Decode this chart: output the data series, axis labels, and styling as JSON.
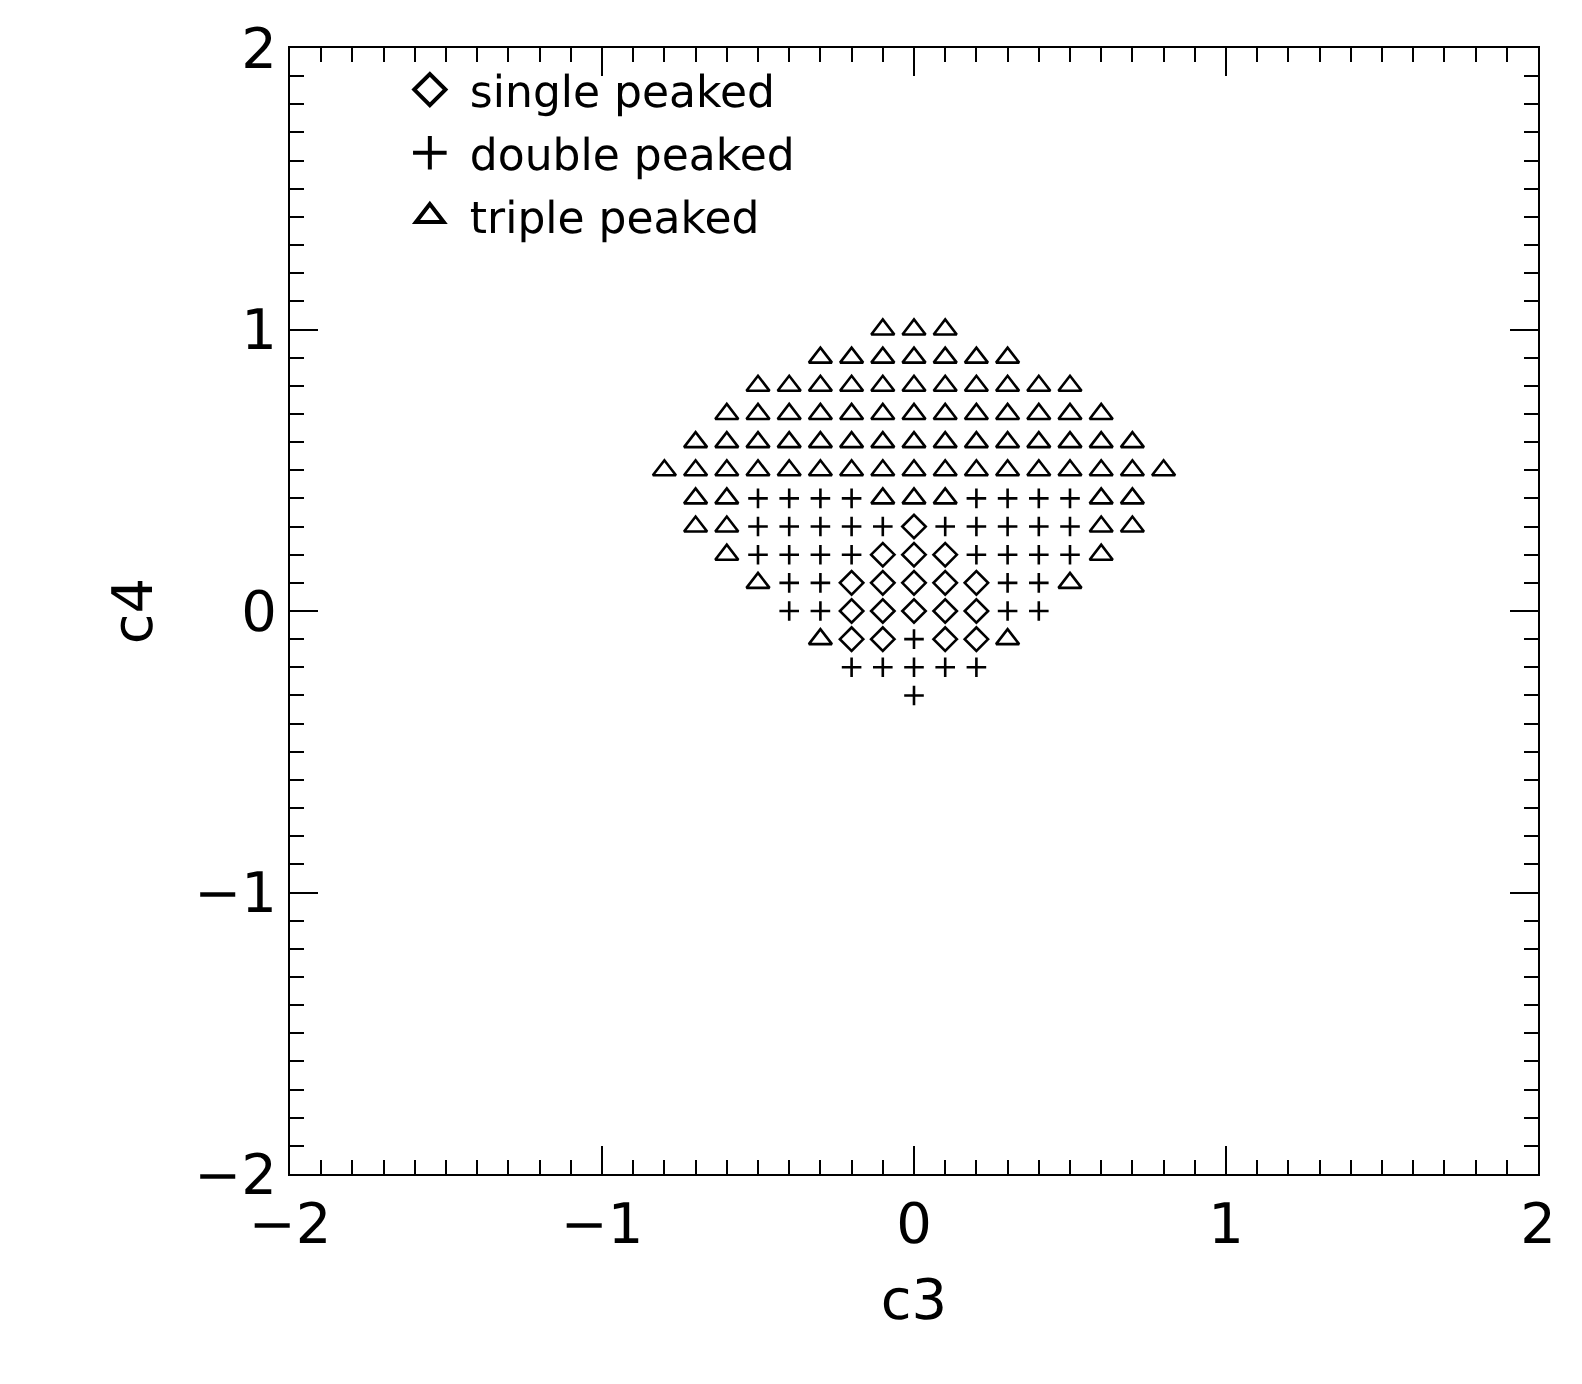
{
  "chart_data": {
    "type": "scatter",
    "xlabel": "c3",
    "ylabel": "c4",
    "xlim": [
      -2,
      2
    ],
    "ylim": [
      -2,
      2
    ],
    "xticks": [
      -2,
      -1,
      0,
      1,
      2
    ],
    "yticks": [
      -2,
      -1,
      0,
      1,
      2
    ],
    "grid": false,
    "legend": "top left",
    "series": [
      {
        "name": "single peaked",
        "color": "#000000",
        "marker": "diamond",
        "x": [
          0,
          -0.1,
          0,
          0.1,
          -0.2,
          -0.1,
          0,
          0.1,
          0.2,
          -0.2,
          -0.1,
          0,
          0.1,
          0.2,
          -0.2,
          -0.1,
          0.1,
          0.2
        ],
        "values": [
          0.3,
          0.2,
          0.2,
          0.2,
          0.1,
          0.1,
          0.1,
          0.1,
          0.1,
          0,
          0,
          0,
          0,
          0,
          -0.1,
          -0.1,
          -0.1,
          -0.1
        ]
      },
      {
        "name": "double peaked",
        "color": "#000000",
        "marker": "cross",
        "x": [
          -0.5,
          -0.4,
          -0.3,
          -0.2,
          0.2,
          0.3,
          0.4,
          0.5,
          -0.5,
          -0.4,
          -0.3,
          -0.2,
          -0.1,
          0.1,
          0.2,
          0.3,
          0.4,
          0.5,
          -0.5,
          -0.4,
          -0.3,
          -0.2,
          0.2,
          0.3,
          0.4,
          0.5,
          -0.4,
          -0.3,
          0.3,
          0.4,
          -0.4,
          -0.3,
          0.3,
          0.4,
          0,
          -0.2,
          -0.1,
          0,
          0.1,
          0.2,
          0
        ],
        "values": [
          0.4,
          0.4,
          0.4,
          0.4,
          0.4,
          0.4,
          0.4,
          0.4,
          0.3,
          0.3,
          0.3,
          0.3,
          0.3,
          0.3,
          0.3,
          0.3,
          0.3,
          0.3,
          0.2,
          0.2,
          0.2,
          0.2,
          0.2,
          0.2,
          0.2,
          0.2,
          0.1,
          0.1,
          0.1,
          0.1,
          0,
          0,
          0,
          0,
          -0.1,
          -0.2,
          -0.2,
          -0.2,
          -0.2,
          -0.2,
          -0.3
        ]
      },
      {
        "name": "triple peaked",
        "color": "#000000",
        "marker": "triangle",
        "x": [
          -0.1,
          0,
          0.1,
          -0.3,
          -0.2,
          -0.1,
          0,
          0.1,
          0.2,
          0.3,
          -0.5,
          -0.4,
          -0.3,
          -0.2,
          -0.1,
          0,
          0.1,
          0.2,
          0.3,
          0.4,
          0.5,
          -0.6,
          -0.5,
          -0.4,
          -0.3,
          -0.2,
          -0.1,
          0,
          0.1,
          0.2,
          0.3,
          0.4,
          0.5,
          0.6,
          -0.7,
          -0.6,
          -0.5,
          -0.4,
          -0.3,
          -0.2,
          -0.1,
          0,
          0.1,
          0.2,
          0.3,
          0.4,
          0.5,
          0.6,
          0.7,
          -0.8,
          -0.7,
          -0.6,
          -0.5,
          -0.4,
          -0.3,
          -0.2,
          -0.1,
          0,
          0.1,
          0.2,
          0.3,
          0.4,
          0.5,
          0.6,
          0.7,
          0.8,
          -0.7,
          -0.6,
          -0.1,
          0,
          0.1,
          0.6,
          0.7,
          -0.7,
          -0.6,
          0.6,
          0.7,
          -0.6,
          0.6,
          -0.5,
          0.5,
          -0.3,
          0.3
        ],
        "values": [
          1,
          1,
          1,
          0.9,
          0.9,
          0.9,
          0.9,
          0.9,
          0.9,
          0.9,
          0.8,
          0.8,
          0.8,
          0.8,
          0.8,
          0.8,
          0.8,
          0.8,
          0.8,
          0.8,
          0.8,
          0.7,
          0.7,
          0.7,
          0.7,
          0.7,
          0.7,
          0.7,
          0.7,
          0.7,
          0.7,
          0.7,
          0.7,
          0.7,
          0.6,
          0.6,
          0.6,
          0.6,
          0.6,
          0.6,
          0.6,
          0.6,
          0.6,
          0.6,
          0.6,
          0.6,
          0.6,
          0.6,
          0.6,
          0.5,
          0.5,
          0.5,
          0.5,
          0.5,
          0.5,
          0.5,
          0.5,
          0.5,
          0.5,
          0.5,
          0.5,
          0.5,
          0.5,
          0.5,
          0.5,
          0.5,
          0.4,
          0.4,
          0.4,
          0.4,
          0.4,
          0.4,
          0.4,
          0.3,
          0.3,
          0.3,
          0.3,
          0.2,
          0.2,
          0.1,
          0.1,
          -0.1,
          -0.1
        ]
      }
    ]
  }
}
